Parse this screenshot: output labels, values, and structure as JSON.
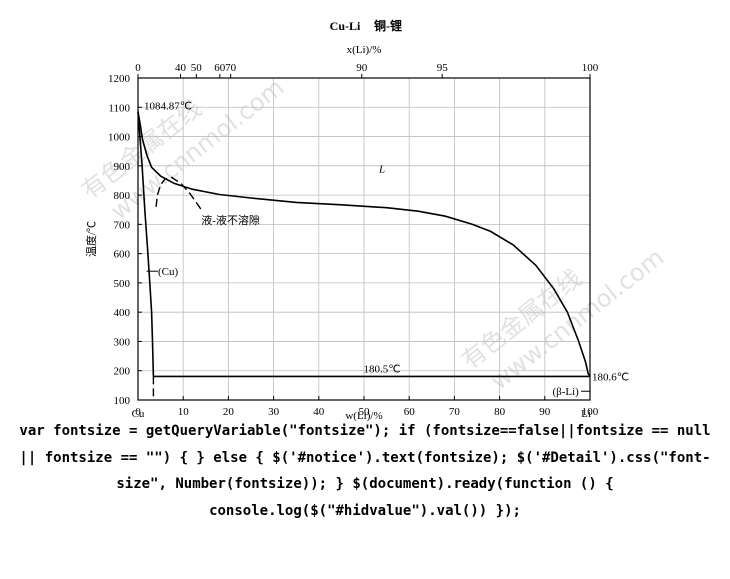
{
  "chart_data": {
    "type": "line",
    "title": "Cu-Li",
    "subtitle": "铜-锂",
    "top_axis_label": "x(Li)/%",
    "top_ticks": [
      {
        "w": 0,
        "label": "0"
      },
      {
        "w": 9.4,
        "label": "40"
      },
      {
        "w": 12.9,
        "label": "50"
      },
      {
        "w": 18.1,
        "label": "60"
      },
      {
        "w": 20.5,
        "label": "70"
      },
      {
        "w": 49.5,
        "label": "90"
      },
      {
        "w": 67.3,
        "label": "95"
      },
      {
        "w": 100,
        "label": "100"
      }
    ],
    "xlabel": "w(Li)/%",
    "ylabel": "温度/℃",
    "xlim": [
      0,
      100
    ],
    "ylim": [
      100,
      1200
    ],
    "x_ticks": [
      0,
      10,
      20,
      30,
      40,
      50,
      60,
      70,
      80,
      90,
      100
    ],
    "y_ticks": [
      100,
      200,
      300,
      400,
      500,
      600,
      700,
      800,
      900,
      1000,
      1100,
      1200
    ],
    "grid": true,
    "series": [
      {
        "style": "solid",
        "points": [
          [
            0,
            1084.87
          ],
          [
            0.5,
            1040
          ],
          [
            1,
            990
          ],
          [
            2,
            935
          ],
          [
            3,
            895
          ],
          [
            5,
            865
          ],
          [
            8,
            840
          ],
          [
            12,
            820
          ],
          [
            18,
            802
          ],
          [
            25,
            790
          ],
          [
            35,
            775
          ],
          [
            45,
            767
          ],
          [
            55,
            757
          ],
          [
            62,
            745
          ],
          [
            68,
            728
          ],
          [
            74,
            700
          ],
          [
            78,
            676
          ],
          [
            83,
            630
          ],
          [
            88,
            560
          ],
          [
            92,
            480
          ],
          [
            95,
            400
          ],
          [
            97.5,
            300
          ],
          [
            99,
            230
          ],
          [
            99.6,
            190
          ],
          [
            100,
            180.6
          ]
        ]
      },
      {
        "style": "solid",
        "points": [
          [
            0,
            1084.87
          ],
          [
            0.9,
            900
          ],
          [
            1.5,
            750
          ],
          [
            2.1,
            620
          ],
          [
            2.6,
            500
          ],
          [
            3,
            400
          ],
          [
            3.2,
            300
          ],
          [
            3.4,
            180.5
          ]
        ]
      },
      {
        "style": "solid",
        "points": [
          [
            3.4,
            180.5
          ],
          [
            100,
            180.5
          ]
        ]
      },
      {
        "style": "dashed",
        "points": [
          [
            4,
            760
          ],
          [
            4.3,
            800
          ],
          [
            5,
            835
          ],
          [
            6,
            855
          ],
          [
            7.5,
            860
          ],
          [
            9.5,
            840
          ],
          [
            11.5,
            805
          ],
          [
            14,
            750
          ]
        ]
      },
      {
        "style": "dashed",
        "points": [
          [
            3.4,
            180.5
          ],
          [
            3.4,
            100
          ]
        ]
      }
    ],
    "annotations": [
      {
        "text": "1084.87℃",
        "x": 0,
        "y": 1084.87
      },
      {
        "text": "L",
        "x": 54,
        "y": 890
      },
      {
        "text": "液-液不溶隙",
        "x": 14,
        "y": 715
      },
      {
        "text": "(Cu)",
        "x": 2.2,
        "y": 540
      },
      {
        "text": "180.5℃",
        "x": 54,
        "y": 180.5
      },
      {
        "text": "180.6℃",
        "x": 100,
        "y": 180.6
      },
      {
        "text": "(β-Li)",
        "x": 97,
        "y": 130
      },
      {
        "text": "Cu",
        "x": 0,
        "y": 100
      },
      {
        "text": "Li",
        "x": 100,
        "y": 100
      }
    ]
  },
  "watermarks": [
    "有色金属在线",
    "www.cnnmol.com"
  ],
  "script_text": "var fontsize = getQueryVariable(\"fontsize\"); if (fontsize==false||fontsize == null || fontsize == \"\") { } else { $('#notice').text(fontsize); $('#Detail').css(\"font-size\", Number(fontsize)); } $(document).ready(function () { console.log($(\"#hidvalue\").val()) });"
}
